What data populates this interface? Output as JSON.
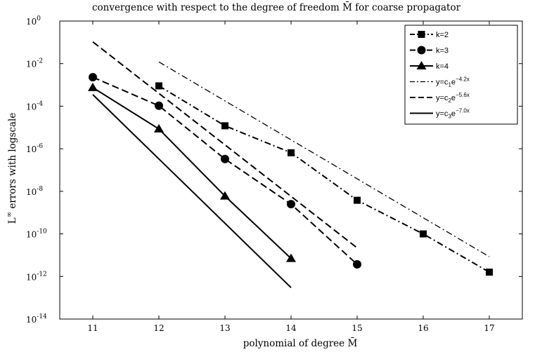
{
  "chart_data": {
    "type": "line",
    "title": "convergence with respect to the degree of freedom M̄ for coarse propagator",
    "xlabel": "polynomial of degree M̄",
    "ylabel_prefix": "L",
    "ylabel_sup": "∞",
    "ylabel_rest": " errors with logscale",
    "x_range": [
      10.5,
      17.5
    ],
    "y_log_range": [
      -14,
      0
    ],
    "y_scale": "log",
    "grid": false,
    "legend_position": "top-right",
    "x_ticks": [
      "11",
      "12",
      "13",
      "14",
      "15",
      "16",
      "17"
    ],
    "y_ticks": [
      {
        "base": "10",
        "exp": "0"
      },
      {
        "base": "10",
        "exp": "-2"
      },
      {
        "base": "10",
        "exp": "-4"
      },
      {
        "base": "10",
        "exp": "-6"
      },
      {
        "base": "10",
        "exp": "-8"
      },
      {
        "base": "10",
        "exp": "-10"
      },
      {
        "base": "10",
        "exp": "-12"
      },
      {
        "base": "10",
        "exp": "-14"
      }
    ],
    "series": [
      {
        "name": "k=2",
        "marker": "square",
        "dash": "dashdot",
        "x": [
          12,
          13,
          14,
          15,
          16,
          17
        ],
        "y": [
          0.0009,
          1.2e-05,
          6.5e-07,
          3.8e-09,
          1e-10,
          1.6e-12
        ]
      },
      {
        "name": "k=3",
        "marker": "circle",
        "dash": "dashed",
        "x": [
          11,
          12,
          13,
          14,
          15
        ],
        "y": [
          0.0023,
          0.000105,
          3.3e-07,
          2.5e-09,
          3.7e-12
        ]
      },
      {
        "name": "k=4",
        "marker": "triangle",
        "dash": "solid",
        "x": [
          11,
          12,
          13,
          14
        ],
        "y": [
          0.00075,
          8.5e-06,
          6e-09,
          7e-12
        ]
      },
      {
        "name": "y=c",
        "name_sub": "1",
        "name_rest": "e",
        "name_sup": "−4.2x",
        "marker": "none",
        "dash": "dashdot",
        "thin": true,
        "x": [
          12,
          17
        ],
        "y": [
          0.012,
          8.5e-12
        ]
      },
      {
        "name": "y=c",
        "name_sub": "2",
        "name_rest": "e",
        "name_sup": "−5.6x",
        "marker": "none",
        "dash": "dashed",
        "x": [
          11,
          15
        ],
        "y": [
          0.105,
          2.2e-11
        ]
      },
      {
        "name": "y=c",
        "name_sub": "3",
        "name_rest": "e",
        "name_sup": "−7.0x",
        "marker": "none",
        "dash": "solid",
        "x": [
          11,
          14
        ],
        "y": [
          0.00035,
          3e-13
        ]
      }
    ]
  }
}
